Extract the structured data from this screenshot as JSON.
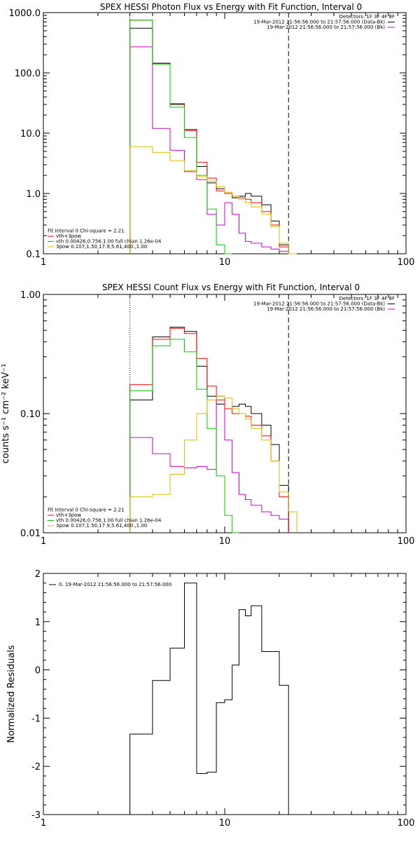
{
  "chart_data": [
    {
      "type": "line",
      "title": "SPEX HESSI Photon Flux vs Energy with Fit Function, Interval 0",
      "xlabel": "",
      "ylabel": "",
      "xscale": "log",
      "yscale": "log",
      "xlim": [
        1,
        100
      ],
      "ylim": [
        0.1,
        1000
      ],
      "x_tick_labels": [
        "1",
        "10",
        "100"
      ],
      "y_tick_labels": [
        "0.1",
        "1.0",
        "10.0",
        "100.0",
        "1000.0"
      ],
      "y_tick_values": [
        0.1,
        1,
        10,
        100,
        1000
      ],
      "x_tick_values": [
        1,
        10,
        100
      ],
      "vlines": [
        {
          "x": 3.0,
          "style": "dotted",
          "color": "#000000"
        },
        {
          "x": 22.5,
          "style": "dashed",
          "color": "#000000"
        }
      ],
      "legend_top_right": [
        {
          "text": "Detectors: 1F 3F 4F 8F",
          "color": "",
          "marker": false
        },
        {
          "text": "19-Mar-2012 21:56:56.000 to 21:57:56.000 (Data-Bk)",
          "color": "#000000",
          "marker": true
        },
        {
          "text": "19-Mar-2012 21:56:56.000 to 21:57:56.000 (Bk)",
          "color": "#cc00cc",
          "marker": true
        }
      ],
      "legend_bottom_left": [
        {
          "text": "Fit Interval 0   Chi-square = 2.21",
          "color": "",
          "marker": false
        },
        {
          "text": "vth+3pow",
          "color": "#ff0000",
          "marker": true
        },
        {
          "text": "vth 0.00426,0.756,1.00   full chian 1.26e-04",
          "color": "#00cc00",
          "marker": true
        },
        {
          "text": "3pow 0.107,1.50,17.9,5.61,400.,1.00",
          "color": "#ddbb00",
          "marker": true
        }
      ],
      "bin_edges": [
        3.0,
        4.0,
        5.0,
        6.0,
        7.0,
        8.0,
        9.0,
        10.0,
        11.0,
        12.0,
        13.0,
        14.0,
        16.0,
        18.0,
        20.0,
        22.5,
        25.0
      ],
      "series": [
        {
          "name": "Data-Bk",
          "color": "#000000",
          "values": [
            550,
            145,
            30,
            11.5,
            2.8,
            1.5,
            1.2,
            1.0,
            0.85,
            0.9,
            1.0,
            0.9,
            0.65,
            0.35,
            0.14,
            null
          ]
        },
        {
          "name": "Bk",
          "color": "#cc00cc",
          "values": [
            270,
            12,
            5.2,
            2.3,
            1.7,
            0.45,
            0.3,
            0.7,
            0.45,
            0.22,
            0.16,
            0.15,
            0.13,
            0.12,
            0.11,
            null
          ]
        },
        {
          "name": "vth+3pow",
          "color": "#ff0000",
          "values": [
            750,
            140,
            31,
            11,
            3.3,
            1.8,
            1.1,
            1.0,
            0.9,
            0.85,
            0.8,
            0.7,
            0.5,
            0.3,
            0.13,
            0.1
          ]
        },
        {
          "name": "vth",
          "color": "#00cc00",
          "values": [
            750,
            140,
            27,
            8.5,
            2.0,
            0.55,
            0.14,
            0.09,
            null,
            null,
            null,
            null,
            null,
            null,
            null,
            null
          ]
        },
        {
          "name": "3pow",
          "color": "#ddbb00",
          "values": [
            6,
            4.8,
            3.5,
            2.4,
            1.9,
            1.6,
            1.3,
            1.05,
            0.9,
            0.8,
            0.7,
            0.6,
            0.45,
            0.28,
            0.15,
            0.1
          ]
        }
      ]
    },
    {
      "type": "line",
      "title": "SPEX HESSI Count Flux vs Energy with Fit Function, Interval 0",
      "xlabel": "",
      "ylabel": "counts s⁻¹ cm⁻² keV⁻¹",
      "xscale": "log",
      "yscale": "log",
      "xlim": [
        1,
        100
      ],
      "ylim": [
        0.01,
        1.0
      ],
      "x_tick_labels": [
        "1",
        "10",
        "100"
      ],
      "y_tick_labels": [
        "0.01",
        "0.10",
        "1.00"
      ],
      "y_tick_values": [
        0.01,
        0.1,
        1.0
      ],
      "x_tick_values": [
        1,
        10,
        100
      ],
      "vlines": [
        {
          "x": 3.0,
          "style": "dotted",
          "color": "#000000"
        },
        {
          "x": 22.5,
          "style": "dashed",
          "color": "#000000"
        }
      ],
      "legend_top_right": [
        {
          "text": "Detectors: 1F 3F 4F 8F",
          "color": "",
          "marker": false
        },
        {
          "text": "19-Mar-2012 21:56:56.000 to 21:57:56.000 (Data-Bk)",
          "color": "#000000",
          "marker": true
        },
        {
          "text": "19-Mar-2012 21:56:56.000 to 21:57:56.000 (Bk)",
          "color": "#cc00cc",
          "marker": true
        }
      ],
      "legend_bottom_left": [
        {
          "text": "Fit Interval 0   Chi-square = 2.21",
          "color": "",
          "marker": false
        },
        {
          "text": "vth+3pow",
          "color": "#ff0000",
          "marker": true
        },
        {
          "text": "vth 0.00426,0.756,1.00   full chian 1.26e-04",
          "color": "#00cc00",
          "marker": true
        },
        {
          "text": "3pow 0.107,1.50,17.9,5.61,400.,1.00",
          "color": "#ddbb00",
          "marker": true
        }
      ],
      "bin_edges": [
        3.0,
        4.0,
        5.0,
        6.0,
        7.0,
        8.0,
        9.0,
        10.0,
        11.0,
        12.0,
        13.0,
        14.0,
        16.0,
        18.0,
        20.0,
        22.5,
        25.0
      ],
      "series": [
        {
          "name": "Data-Bk",
          "color": "#000000",
          "values": [
            0.13,
            0.44,
            0.53,
            0.49,
            0.25,
            0.14,
            0.12,
            0.11,
            0.115,
            0.12,
            0.115,
            0.1,
            0.08,
            0.055,
            0.025,
            null
          ]
        },
        {
          "name": "Bk",
          "color": "#cc00cc",
          "values": [
            0.063,
            0.046,
            0.036,
            0.035,
            0.036,
            0.034,
            0.14,
            0.06,
            0.032,
            0.021,
            0.019,
            0.017,
            0.015,
            0.014,
            0.013,
            null
          ]
        },
        {
          "name": "vth+3pow",
          "color": "#ff0000",
          "values": [
            0.175,
            0.42,
            0.52,
            0.47,
            0.29,
            0.17,
            0.13,
            0.11,
            0.1,
            0.1,
            0.095,
            0.08,
            0.065,
            0.04,
            0.02,
            null
          ]
        },
        {
          "name": "vth",
          "color": "#00cc00",
          "values": [
            0.155,
            0.37,
            0.42,
            0.33,
            0.16,
            0.075,
            0.03,
            0.014,
            0.009,
            null,
            null,
            null,
            null,
            null,
            null,
            null
          ]
        },
        {
          "name": "3pow",
          "color": "#ddbb00",
          "values": [
            0.02,
            0.021,
            0.031,
            0.06,
            0.1,
            0.13,
            0.14,
            0.135,
            0.11,
            0.1,
            0.09,
            0.075,
            0.06,
            0.04,
            0.022,
            0.015
          ]
        }
      ]
    },
    {
      "type": "line",
      "title": "",
      "xlabel": "",
      "ylabel": "Normalized Residuals",
      "xscale": "log",
      "yscale": "linear",
      "xlim": [
        1,
        100
      ],
      "ylim": [
        -3,
        2
      ],
      "x_tick_labels": [
        "1",
        "10",
        "100"
      ],
      "y_tick_labels": [
        "-3",
        "-2",
        "-1",
        "0",
        "1",
        "2"
      ],
      "y_tick_values": [
        -3,
        -2,
        -1,
        0,
        1,
        2
      ],
      "x_tick_values": [
        1,
        10,
        100
      ],
      "vlines": [],
      "legend_top_left": [
        {
          "text": "0. 19-Mar-2012 21:56:56.000 to 21:57:56.000",
          "color": "#000000",
          "marker": true
        }
      ],
      "bin_edges": [
        3.0,
        4.0,
        5.0,
        6.0,
        6.5,
        7.0,
        7.5,
        8.0,
        9.0,
        10.0,
        11.0,
        12.0,
        13.0,
        14.0,
        15.0,
        16.0,
        17.0,
        18.0,
        20.0,
        22.5
      ],
      "series": [
        {
          "name": "residuals",
          "color": "#000000",
          "values": [
            -1.33,
            -0.22,
            0.45,
            1.8,
            1.8,
            -2.15,
            -2.15,
            -2.12,
            -0.68,
            -0.62,
            0.1,
            1.25,
            1.12,
            1.33,
            1.33,
            0.38,
            0.38,
            0.38,
            -0.32
          ]
        }
      ]
    }
  ]
}
